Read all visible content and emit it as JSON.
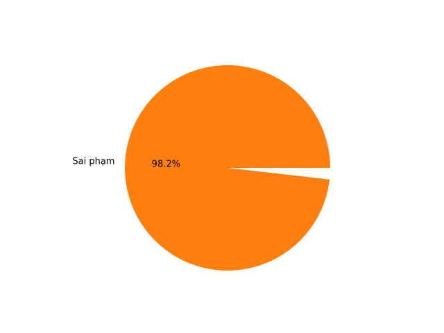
{
  "chart_data": {
    "type": "pie",
    "title": "",
    "slices": [
      {
        "label": "Sai phạm",
        "value": 98.2,
        "pct_label": "98.2%",
        "color": "#ff7f0e"
      },
      {
        "label": "",
        "value": 1.8,
        "pct_label": "",
        "color": "#ffffff"
      }
    ],
    "start_angle_deg": 0,
    "direction": "counterclockwise",
    "legend": "none"
  }
}
